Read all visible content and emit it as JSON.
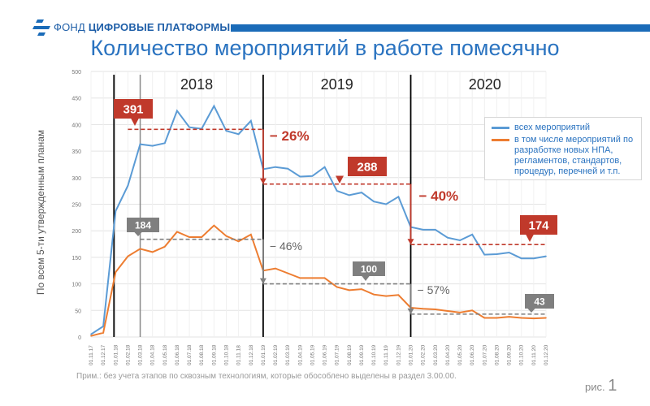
{
  "header": {
    "org_prefix": "ФОНД",
    "org_name": "ЦИФРОВЫЕ ПЛАТФОРМЫ"
  },
  "colors": {
    "primary": "#2a73c0",
    "series_all": "#5b9bd5",
    "series_npa": "#ed7d31",
    "callout_red": "#c0392b",
    "callout_gray": "#7f7f7f"
  },
  "slide": {
    "title": "Количество мероприятий в работе помесячно",
    "footnote": "Прим.: без учета этапов по сквозным технологиям, которые обособлено выделены в раздел 3.00.00.",
    "fig_label": "рис.",
    "fig_number": "1"
  },
  "chart_data": {
    "type": "line",
    "ylabel": "По всем 5-ти утвержденным планам",
    "ylim": [
      0,
      500
    ],
    "yticks": [
      0,
      50,
      100,
      150,
      200,
      250,
      300,
      350,
      400,
      450,
      500
    ],
    "grid": true,
    "x": [
      "01.11.17",
      "01.12.17",
      "01.01.18",
      "01.02.18",
      "01.03.18",
      "01.04.18",
      "01.05.18",
      "01.06.18",
      "01.07.18",
      "01.08.18",
      "01.09.18",
      "01.10.18",
      "01.11.18",
      "01.12.18",
      "01.01.19",
      "01.02.19",
      "01.03.19",
      "01.04.19",
      "01.05.19",
      "01.06.19",
      "01.07.19",
      "01.08.19",
      "01.09.19",
      "01.10.19",
      "01.11.19",
      "01.12.19",
      "01.01.20",
      "01.02.20",
      "01.03.20",
      "01.04.20",
      "01.05.20",
      "01.06.20",
      "01.07.20",
      "01.08.20",
      "01.09.20",
      "01.10.20",
      "01.11.20",
      "01.12.20"
    ],
    "series": [
      {
        "name": "всех мероприятий",
        "color": "#5b9bd5",
        "values": [
          5,
          20,
          237,
          285,
          363,
          360,
          365,
          426,
          395,
          392,
          435,
          388,
          382,
          407,
          316,
          320,
          317,
          302,
          303,
          320,
          275,
          267,
          272,
          255,
          250,
          264,
          207,
          202,
          202,
          187,
          182,
          193,
          155,
          156,
          159,
          148,
          148,
          152
        ]
      },
      {
        "name": "в том числе мероприятий по разработке новых НПА, регламентов, стандартов, процедур, перечней и т.п.",
        "color": "#ed7d31",
        "values": [
          2,
          8,
          122,
          152,
          166,
          160,
          170,
          198,
          188,
          188,
          210,
          190,
          180,
          193,
          125,
          129,
          120,
          111,
          111,
          111,
          94,
          88,
          90,
          80,
          77,
          79,
          55,
          53,
          52,
          49,
          46,
          50,
          36,
          36,
          38,
          36,
          35,
          36
        ]
      }
    ],
    "years": [
      {
        "label": "2018",
        "start_index": 2
      },
      {
        "label": "2019",
        "start_index": 14
      },
      {
        "label": "2020",
        "start_index": 26
      }
    ],
    "annotations": {
      "level_all": [
        {
          "value": 391,
          "label": "391",
          "from_index": 3,
          "to_index": 14
        },
        {
          "value": 288,
          "label": "288",
          "from_index": 14,
          "to_index": 26
        },
        {
          "value": 174,
          "label": "174",
          "from_index": 26,
          "to_index": 37
        }
      ],
      "level_npa": [
        {
          "value": 184,
          "label": "184",
          "from_index": 4,
          "to_index": 14
        },
        {
          "value": 100,
          "label": "100",
          "from_index": 14,
          "to_index": 26
        },
        {
          "value": 43,
          "label": "43",
          "from_index": 26,
          "to_index": 37
        }
      ],
      "pct_all": [
        {
          "label": "− 26%",
          "at_index": 14
        },
        {
          "label": "− 40%",
          "at_index": 26
        }
      ],
      "pct_npa": [
        {
          "label": "− 46%",
          "at_index": 14
        },
        {
          "label": "− 57%",
          "at_index": 26
        }
      ]
    }
  }
}
